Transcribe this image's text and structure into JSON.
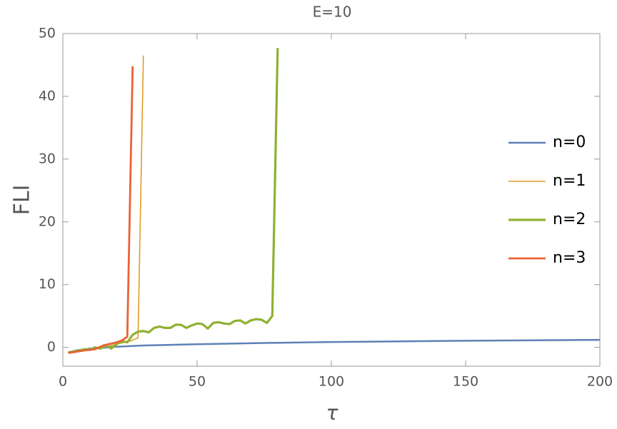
{
  "chart_data": {
    "type": "line",
    "title": "E=10",
    "xlabel": "τ",
    "ylabel": "FLI",
    "xlim": [
      0,
      200
    ],
    "ylim": [
      -3,
      50
    ],
    "xticks": [
      0,
      50,
      100,
      150,
      200
    ],
    "yticks": [
      0,
      10,
      20,
      30,
      40,
      50
    ],
    "legend": "right",
    "series": [
      {
        "name": "n=0",
        "color": "#5e81b5",
        "x": [
          2,
          5,
          10,
          20,
          30,
          50,
          75,
          100,
          125,
          150,
          175,
          200
        ],
        "values": [
          -0.8,
          -0.5,
          -0.2,
          0.1,
          0.3,
          0.5,
          0.7,
          0.85,
          0.95,
          1.05,
          1.12,
          1.2
        ]
      },
      {
        "name": "n=1",
        "color": "#e19c24",
        "x": [
          2,
          5,
          10,
          15,
          20,
          25,
          28,
          30
        ],
        "values": [
          -0.9,
          -0.7,
          -0.3,
          0,
          0.5,
          1.0,
          1.5,
          46.5
        ]
      },
      {
        "name": "n=2",
        "color": "#8fb032",
        "x": [
          2,
          5,
          8,
          10,
          12,
          14,
          16,
          18,
          20,
          22,
          24,
          26,
          28,
          30,
          32,
          34,
          36,
          38,
          40,
          42,
          44,
          46,
          48,
          50,
          52,
          54,
          56,
          58,
          60,
          62,
          64,
          66,
          68,
          70,
          72,
          74,
          76,
          78,
          80
        ],
        "values": [
          -0.8,
          -0.6,
          -0.3,
          -0.4,
          0,
          -0.2,
          0.3,
          -0.2,
          0.5,
          1.0,
          0.8,
          2.0,
          2.5,
          2.6,
          2.4,
          3.1,
          3.3,
          3.1,
          3.1,
          3.6,
          3.6,
          3.1,
          3.5,
          3.8,
          3.7,
          3.0,
          3.9,
          4.0,
          3.8,
          3.7,
          4.2,
          4.3,
          3.8,
          4.3,
          4.5,
          4.4,
          3.9,
          5.0,
          47.7
        ]
      },
      {
        "name": "n=3",
        "color": "#eb6235",
        "x": [
          2,
          5,
          8,
          10,
          12,
          15,
          18,
          20,
          22,
          24,
          26
        ],
        "values": [
          -0.9,
          -0.7,
          -0.5,
          -0.4,
          -0.3,
          0.3,
          0.6,
          0.8,
          1.1,
          1.7,
          44.8
        ]
      }
    ]
  }
}
